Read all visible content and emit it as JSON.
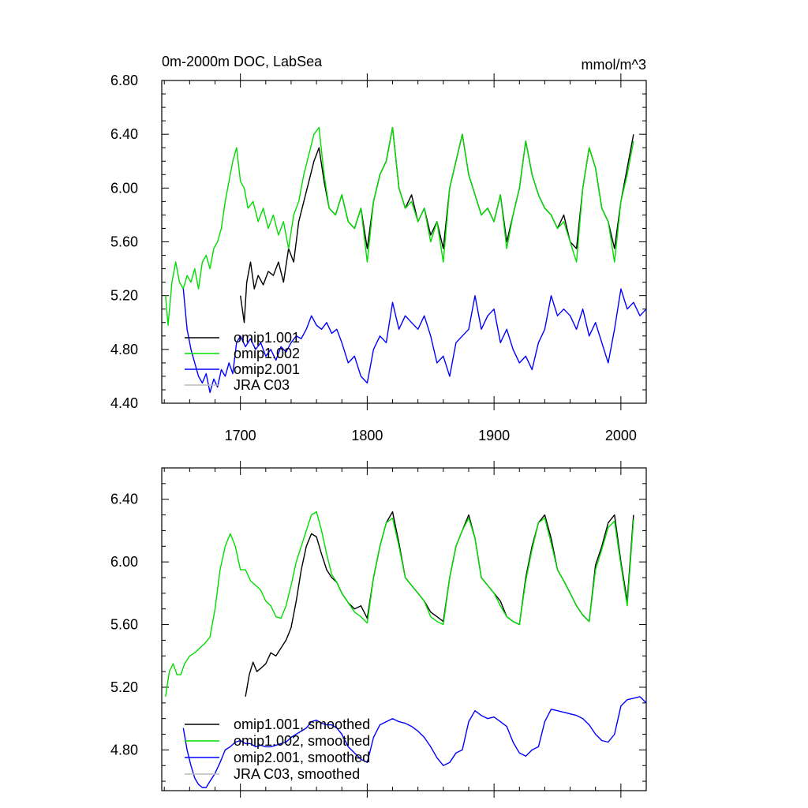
{
  "chart_data": [
    {
      "type": "line",
      "title": "0m-2000m DOC, LabSea",
      "units": "mmol/m^3",
      "xlim": [
        1638,
        2020
      ],
      "ylim": [
        4.4,
        6.8
      ],
      "xticks": [
        1700,
        1800,
        1900,
        2000
      ],
      "xtick_labels": [
        "1700",
        "1800",
        "1900",
        "2000"
      ],
      "yticks": [
        4.4,
        4.8,
        5.2,
        5.6,
        6.0,
        6.4,
        6.8
      ],
      "ytick_labels": [
        "4.40",
        "4.80",
        "5.20",
        "5.60",
        "6.00",
        "6.40",
        "6.80"
      ],
      "legend": [
        "omip1.001",
        "omip1.002",
        "omip2.001",
        "JRA C03"
      ],
      "series": [
        {
          "name": "omip1.001",
          "color": "#000000",
          "x": [
            1700,
            1703,
            1705,
            1708,
            1711,
            1714,
            1718,
            1722,
            1726,
            1730,
            1734,
            1738,
            1742,
            1746,
            1750,
            1754,
            1758,
            1762,
            1766,
            1770,
            1775,
            1780,
            1785,
            1790,
            1795,
            1800,
            1805,
            1810,
            1815,
            1820,
            1825,
            1830,
            1835,
            1840,
            1845,
            1850,
            1855,
            1860,
            1865,
            1870,
            1875,
            1880,
            1885,
            1890,
            1895,
            1900,
            1905,
            1910,
            1915,
            1920,
            1925,
            1930,
            1935,
            1940,
            1945,
            1950,
            1955,
            1960,
            1965,
            1970,
            1975,
            1980,
            1985,
            1990,
            1995,
            2000,
            2005,
            2010
          ],
          "y": [
            5.2,
            5.0,
            5.3,
            5.45,
            5.25,
            5.35,
            5.28,
            5.38,
            5.35,
            5.45,
            5.3,
            5.55,
            5.45,
            5.75,
            5.9,
            6.05,
            6.2,
            6.3,
            6.05,
            5.85,
            5.8,
            5.95,
            5.75,
            5.7,
            5.85,
            5.55,
            5.9,
            6.1,
            6.2,
            6.45,
            6.0,
            5.85,
            5.95,
            5.75,
            5.85,
            5.65,
            5.75,
            5.55,
            6.0,
            6.2,
            6.4,
            6.1,
            5.95,
            5.8,
            5.85,
            5.75,
            5.95,
            5.6,
            5.8,
            6.0,
            6.35,
            6.1,
            5.95,
            5.85,
            5.8,
            5.7,
            5.8,
            5.6,
            5.55,
            6.0,
            6.3,
            6.15,
            5.85,
            5.75,
            5.55,
            5.9,
            6.15,
            6.4
          ]
        },
        {
          "name": "omip1.002",
          "color": "#00dd00",
          "x": [
            1641,
            1643,
            1646,
            1649,
            1652,
            1655,
            1658,
            1661,
            1664,
            1667,
            1670,
            1673,
            1676,
            1679,
            1682,
            1685,
            1688,
            1691,
            1694,
            1697,
            1700,
            1703,
            1706,
            1710,
            1714,
            1718,
            1722,
            1726,
            1730,
            1734,
            1738,
            1742,
            1746,
            1750,
            1754,
            1758,
            1762,
            1766,
            1770,
            1775,
            1780,
            1785,
            1790,
            1795,
            1800,
            1805,
            1810,
            1815,
            1820,
            1825,
            1830,
            1835,
            1840,
            1845,
            1850,
            1855,
            1860,
            1865,
            1870,
            1875,
            1880,
            1885,
            1890,
            1895,
            1900,
            1905,
            1910,
            1915,
            1920,
            1925,
            1930,
            1935,
            1940,
            1945,
            1950,
            1955,
            1960,
            1965,
            1970,
            1975,
            1980,
            1985,
            1990,
            1995,
            2000,
            2005,
            2010
          ],
          "y": [
            5.2,
            4.98,
            5.3,
            5.45,
            5.3,
            5.25,
            5.35,
            5.3,
            5.4,
            5.25,
            5.45,
            5.5,
            5.4,
            5.55,
            5.6,
            5.7,
            5.9,
            6.05,
            6.2,
            6.3,
            6.05,
            6.0,
            5.85,
            5.9,
            5.75,
            5.85,
            5.7,
            5.8,
            5.65,
            5.75,
            5.55,
            5.8,
            5.9,
            6.1,
            6.25,
            6.4,
            6.45,
            6.1,
            5.85,
            5.8,
            5.95,
            5.75,
            5.7,
            5.85,
            5.45,
            5.9,
            6.1,
            6.2,
            6.45,
            6.0,
            5.85,
            5.9,
            5.75,
            5.85,
            5.6,
            5.75,
            5.45,
            6.0,
            6.2,
            6.4,
            6.1,
            5.95,
            5.8,
            5.85,
            5.75,
            5.95,
            5.55,
            5.8,
            6.0,
            6.35,
            6.1,
            5.95,
            5.85,
            5.8,
            5.7,
            5.75,
            5.6,
            5.45,
            6.0,
            6.3,
            6.15,
            5.85,
            5.75,
            5.45,
            5.9,
            6.1,
            6.35
          ]
        },
        {
          "name": "omip2.001",
          "color": "#0000ff",
          "x": [
            1655,
            1658,
            1661,
            1664,
            1667,
            1670,
            1673,
            1676,
            1679,
            1682,
            1685,
            1688,
            1691,
            1694,
            1697,
            1700,
            1704,
            1708,
            1712,
            1716,
            1720,
            1724,
            1728,
            1732,
            1736,
            1740,
            1744,
            1748,
            1752,
            1756,
            1760,
            1764,
            1768,
            1772,
            1776,
            1780,
            1785,
            1790,
            1795,
            1800,
            1805,
            1810,
            1815,
            1820,
            1825,
            1830,
            1835,
            1840,
            1845,
            1850,
            1855,
            1860,
            1865,
            1870,
            1875,
            1880,
            1885,
            1890,
            1895,
            1900,
            1905,
            1910,
            1915,
            1920,
            1925,
            1930,
            1935,
            1940,
            1945,
            1950,
            1955,
            1960,
            1965,
            1970,
            1975,
            1980,
            1985,
            1990,
            1995,
            2000,
            2005,
            2010,
            2015,
            2020
          ],
          "y": [
            5.25,
            4.95,
            4.8,
            4.7,
            4.6,
            4.55,
            4.62,
            4.48,
            4.58,
            4.52,
            4.65,
            4.6,
            4.7,
            4.62,
            4.85,
            4.9,
            4.82,
            4.88,
            4.8,
            4.85,
            4.75,
            4.8,
            4.72,
            4.82,
            4.78,
            4.85,
            4.9,
            4.88,
            4.95,
            5.05,
            4.98,
            4.95,
            5.0,
            4.92,
            4.95,
            4.85,
            4.7,
            4.75,
            4.6,
            4.55,
            4.8,
            4.9,
            4.85,
            5.15,
            4.95,
            5.05,
            5.0,
            4.95,
            5.05,
            4.9,
            4.7,
            4.75,
            4.6,
            4.85,
            4.9,
            4.95,
            5.2,
            4.95,
            5.05,
            5.1,
            4.85,
            4.95,
            4.8,
            4.7,
            4.75,
            4.65,
            4.85,
            4.95,
            5.2,
            5.05,
            5.1,
            5.05,
            4.95,
            5.1,
            4.9,
            5.0,
            4.85,
            4.7,
            4.95,
            5.25,
            5.1,
            5.15,
            5.05,
            5.1
          ]
        },
        {
          "name": "JRA C03",
          "color": "#bbbbbb",
          "x": [],
          "y": []
        }
      ]
    },
    {
      "type": "line",
      "title": "",
      "xlim": [
        1638,
        2020
      ],
      "ylim": [
        4.54,
        6.6
      ],
      "xticks": [
        1700,
        1800,
        1900,
        2000
      ],
      "xtick_labels": [],
      "yticks": [
        4.8,
        5.2,
        5.6,
        6.0,
        6.4
      ],
      "ytick_labels": [
        "4.80",
        "5.20",
        "5.60",
        "6.00",
        "6.40"
      ],
      "legend": [
        "omip1.001, smoothed",
        "omip1.002, smoothed",
        "omip2.001, smoothed",
        "JRA C03, smoothed"
      ],
      "series": [
        {
          "name": "omip1.001, smoothed",
          "color": "#000000",
          "x": [
            1704,
            1707,
            1710,
            1713,
            1716,
            1720,
            1724,
            1728,
            1732,
            1736,
            1740,
            1744,
            1748,
            1752,
            1756,
            1760,
            1764,
            1768,
            1772,
            1776,
            1780,
            1785,
            1790,
            1795,
            1800,
            1805,
            1810,
            1815,
            1820,
            1825,
            1830,
            1835,
            1840,
            1845,
            1850,
            1855,
            1860,
            1865,
            1870,
            1875,
            1880,
            1885,
            1890,
            1895,
            1900,
            1905,
            1910,
            1915,
            1920,
            1925,
            1930,
            1935,
            1940,
            1945,
            1950,
            1955,
            1960,
            1965,
            1970,
            1975,
            1980,
            1985,
            1990,
            1995,
            2000,
            2005,
            2010
          ],
          "y": [
            5.14,
            5.28,
            5.36,
            5.3,
            5.32,
            5.35,
            5.42,
            5.4,
            5.45,
            5.5,
            5.58,
            5.75,
            5.95,
            6.1,
            6.18,
            6.16,
            6.05,
            5.95,
            5.9,
            5.87,
            5.8,
            5.74,
            5.7,
            5.72,
            5.64,
            5.9,
            6.1,
            6.25,
            6.32,
            6.12,
            5.9,
            5.85,
            5.8,
            5.75,
            5.68,
            5.65,
            5.62,
            5.9,
            6.1,
            6.2,
            6.3,
            6.15,
            5.9,
            5.85,
            5.8,
            5.75,
            5.65,
            5.62,
            5.6,
            5.9,
            6.1,
            6.25,
            6.3,
            6.15,
            5.95,
            5.88,
            5.8,
            5.72,
            5.66,
            5.62,
            5.98,
            6.1,
            6.25,
            6.3,
            6.0,
            5.75,
            6.3
          ]
        },
        {
          "name": "omip1.002, smoothed",
          "color": "#00dd00",
          "x": [
            1641,
            1644,
            1647,
            1650,
            1653,
            1656,
            1660,
            1664,
            1668,
            1672,
            1676,
            1680,
            1684,
            1688,
            1692,
            1696,
            1700,
            1704,
            1708,
            1712,
            1716,
            1720,
            1724,
            1728,
            1732,
            1736,
            1740,
            1744,
            1748,
            1752,
            1756,
            1760,
            1764,
            1768,
            1772,
            1776,
            1780,
            1785,
            1790,
            1795,
            1800,
            1805,
            1810,
            1815,
            1820,
            1825,
            1830,
            1835,
            1840,
            1845,
            1850,
            1855,
            1860,
            1865,
            1870,
            1875,
            1880,
            1885,
            1890,
            1895,
            1900,
            1905,
            1910,
            1915,
            1920,
            1925,
            1930,
            1935,
            1940,
            1945,
            1950,
            1955,
            1960,
            1965,
            1970,
            1975,
            1980,
            1985,
            1990,
            1995,
            2000,
            2005,
            2010
          ],
          "y": [
            5.14,
            5.3,
            5.35,
            5.28,
            5.28,
            5.35,
            5.4,
            5.42,
            5.45,
            5.48,
            5.52,
            5.7,
            5.95,
            6.1,
            6.18,
            6.1,
            5.95,
            5.95,
            5.88,
            5.85,
            5.82,
            5.75,
            5.72,
            5.65,
            5.64,
            5.72,
            5.85,
            6.0,
            6.1,
            6.2,
            6.3,
            6.32,
            6.2,
            6.05,
            5.92,
            5.87,
            5.8,
            5.74,
            5.68,
            5.65,
            5.61,
            5.9,
            6.1,
            6.25,
            6.28,
            6.1,
            5.9,
            5.85,
            5.8,
            5.75,
            5.65,
            5.62,
            5.6,
            5.9,
            6.1,
            6.2,
            6.28,
            6.15,
            5.9,
            5.85,
            5.8,
            5.72,
            5.65,
            5.62,
            5.6,
            5.88,
            6.08,
            6.25,
            6.28,
            6.12,
            5.95,
            5.88,
            5.8,
            5.72,
            5.66,
            5.62,
            5.95,
            6.08,
            6.22,
            6.26,
            5.98,
            5.72,
            6.27
          ]
        },
        {
          "name": "omip2.001, smoothed",
          "color": "#0000ff",
          "x": [
            1655,
            1658,
            1661,
            1664,
            1667,
            1670,
            1673,
            1676,
            1680,
            1684,
            1688,
            1692,
            1696,
            1700,
            1704,
            1708,
            1712,
            1716,
            1720,
            1724,
            1728,
            1732,
            1736,
            1740,
            1744,
            1748,
            1752,
            1756,
            1760,
            1764,
            1768,
            1772,
            1776,
            1780,
            1785,
            1790,
            1795,
            1800,
            1805,
            1810,
            1815,
            1820,
            1825,
            1830,
            1835,
            1840,
            1845,
            1850,
            1855,
            1860,
            1865,
            1870,
            1875,
            1880,
            1885,
            1890,
            1895,
            1900,
            1905,
            1910,
            1915,
            1920,
            1925,
            1930,
            1935,
            1940,
            1945,
            1950,
            1955,
            1960,
            1965,
            1970,
            1975,
            1980,
            1985,
            1990,
            1995,
            2000,
            2005,
            2010,
            2015,
            2020
          ],
          "y": [
            4.94,
            4.8,
            4.7,
            4.62,
            4.58,
            4.56,
            4.56,
            4.6,
            4.65,
            4.72,
            4.8,
            4.82,
            4.85,
            4.86,
            4.84,
            4.84,
            4.82,
            4.83,
            4.82,
            4.82,
            4.83,
            4.84,
            4.85,
            4.88,
            4.9,
            4.92,
            4.94,
            4.98,
            4.99,
            4.97,
            4.96,
            4.96,
            4.94,
            4.9,
            4.82,
            4.78,
            4.74,
            4.72,
            4.88,
            4.96,
            4.98,
            5.0,
            4.98,
            4.97,
            4.95,
            4.92,
            4.88,
            4.82,
            4.75,
            4.7,
            4.72,
            4.78,
            4.8,
            4.98,
            5.05,
            5.02,
            5.0,
            5.01,
            4.98,
            4.95,
            4.85,
            4.78,
            4.76,
            4.8,
            4.82,
            4.98,
            5.06,
            5.05,
            5.04,
            5.03,
            5.02,
            5.0,
            4.96,
            4.9,
            4.86,
            4.85,
            4.9,
            5.08,
            5.12,
            5.13,
            5.14,
            5.1
          ]
        },
        {
          "name": "JRA C03, smoothed",
          "color": "#bbbbbb",
          "x": [],
          "y": []
        }
      ]
    }
  ]
}
